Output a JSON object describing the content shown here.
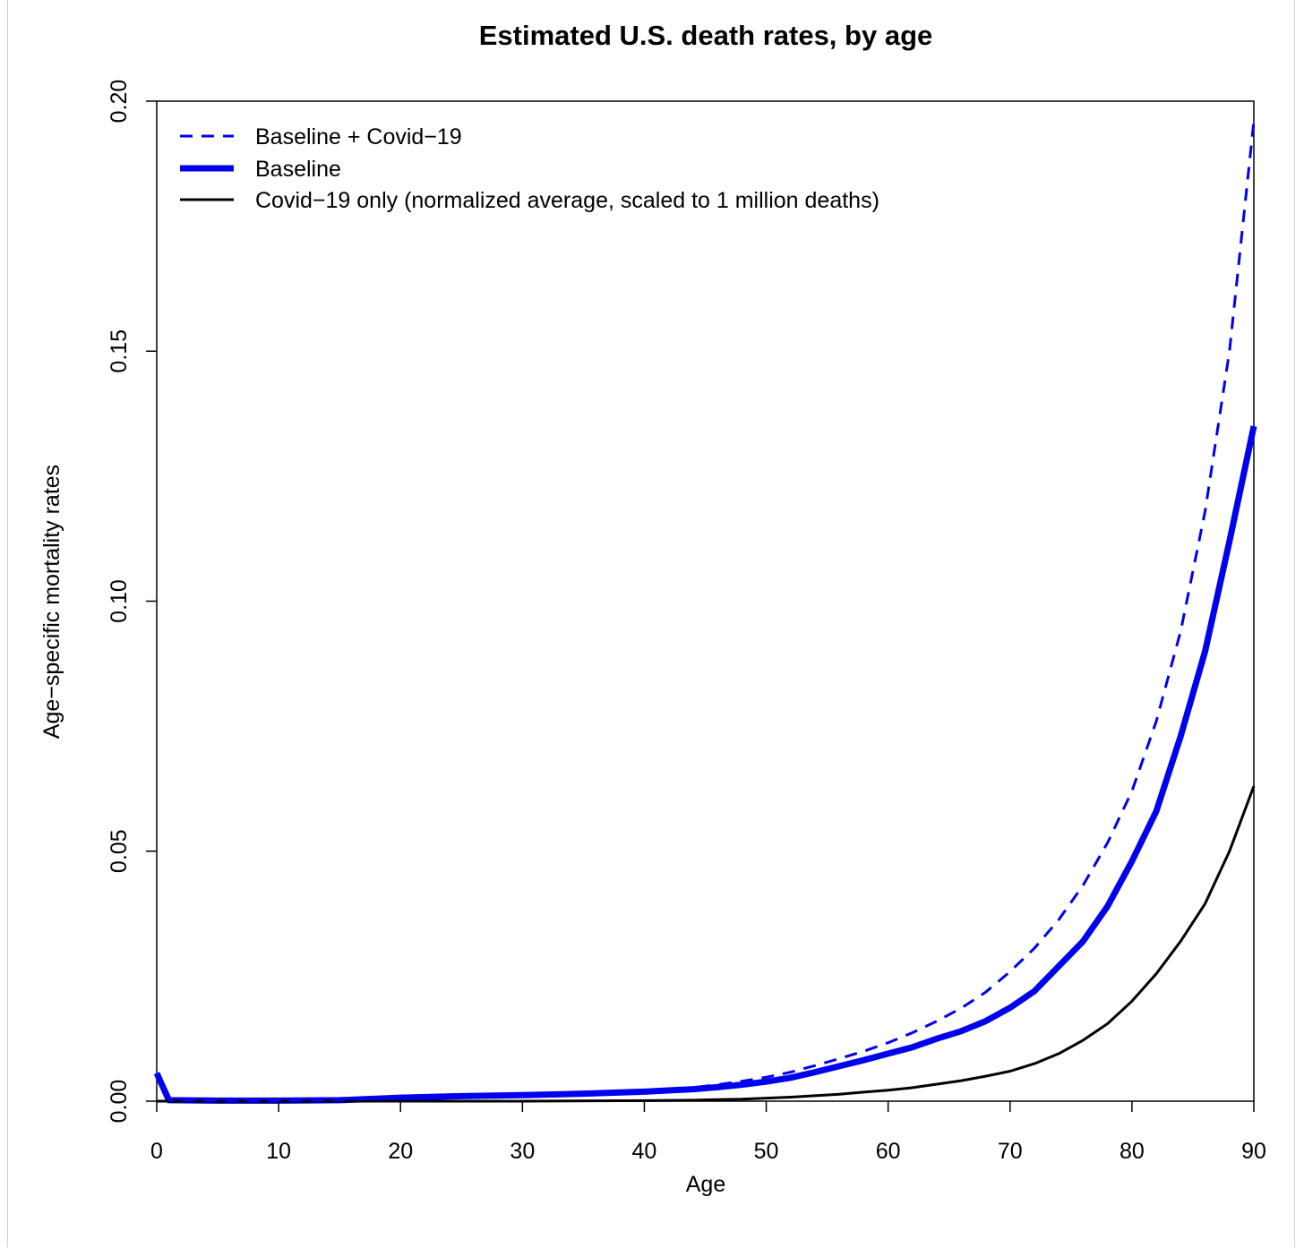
{
  "chart_data": {
    "type": "line",
    "title": "Estimated U.S. death rates, by age",
    "xlabel": "Age",
    "ylabel": "Age−specific mortality rates",
    "xlim": [
      0,
      90
    ],
    "ylim": [
      0,
      0.2
    ],
    "x_ticks": [
      0,
      10,
      20,
      30,
      40,
      50,
      60,
      70,
      80,
      90
    ],
    "x_tick_labels": [
      "0",
      "10",
      "20",
      "30",
      "40",
      "50",
      "60",
      "70",
      "80",
      "90"
    ],
    "y_ticks": [
      0,
      0.05,
      0.1,
      0.15,
      0.2
    ],
    "y_tick_labels": [
      "0.00",
      "0.05",
      "0.10",
      "0.15",
      "0.20"
    ],
    "legend_position": "top-left",
    "series": [
      {
        "name": "Baseline + Covid−19",
        "color": "#0000ee",
        "style": "dashed",
        "x": [
          0,
          1,
          5,
          10,
          15,
          20,
          25,
          30,
          35,
          40,
          44,
          46,
          48,
          50,
          52,
          54,
          56,
          58,
          60,
          62,
          64,
          66,
          68,
          70,
          72,
          74,
          76,
          78,
          80,
          82,
          84,
          86,
          88,
          90
        ],
        "values": [
          0.0056,
          0.0002,
          0.0001,
          0.0001,
          0.0002,
          0.0007,
          0.001,
          0.0013,
          0.0016,
          0.002,
          0.0027,
          0.0033,
          0.004,
          0.0048,
          0.0058,
          0.0071,
          0.0085,
          0.01,
          0.0117,
          0.0137,
          0.016,
          0.0186,
          0.0218,
          0.0259,
          0.0306,
          0.0363,
          0.0432,
          0.0517,
          0.062,
          0.076,
          0.094,
          0.118,
          0.15,
          0.196
        ]
      },
      {
        "name": "Baseline",
        "color": "#0000ee",
        "style": "solid-thick",
        "x": [
          0,
          1,
          5,
          10,
          15,
          20,
          25,
          30,
          35,
          40,
          44,
          46,
          48,
          50,
          52,
          54,
          56,
          58,
          60,
          62,
          64,
          66,
          68,
          70,
          72,
          74,
          76,
          78,
          80,
          82,
          84,
          86,
          88,
          90
        ],
        "values": [
          0.0056,
          0.0002,
          0.0001,
          0.0001,
          0.0002,
          0.0007,
          0.001,
          0.0012,
          0.0015,
          0.0019,
          0.0024,
          0.0028,
          0.0033,
          0.0039,
          0.0047,
          0.0058,
          0.007,
          0.0082,
          0.0095,
          0.0108,
          0.0125,
          0.014,
          0.016,
          0.0187,
          0.022,
          0.027,
          0.032,
          0.039,
          0.048,
          0.058,
          0.073,
          0.09,
          0.112,
          0.135
        ]
      },
      {
        "name": "Covid−19 only (normalized average, scaled to 1 million deaths)",
        "color": "#000000",
        "style": "solid",
        "x": [
          0,
          10,
          20,
          30,
          40,
          44,
          46,
          48,
          50,
          52,
          54,
          56,
          58,
          60,
          62,
          64,
          66,
          68,
          70,
          72,
          74,
          76,
          78,
          80,
          82,
          84,
          86,
          88,
          90
        ],
        "values": [
          0.0,
          0.0,
          0.0,
          0.0,
          0.0001,
          0.0002,
          0.0003,
          0.0004,
          0.0006,
          0.0008,
          0.0011,
          0.0014,
          0.0018,
          0.0022,
          0.0027,
          0.0034,
          0.0041,
          0.005,
          0.006,
          0.0075,
          0.0095,
          0.0122,
          0.0155,
          0.02,
          0.0255,
          0.032,
          0.0395,
          0.05,
          0.063
        ]
      }
    ]
  }
}
